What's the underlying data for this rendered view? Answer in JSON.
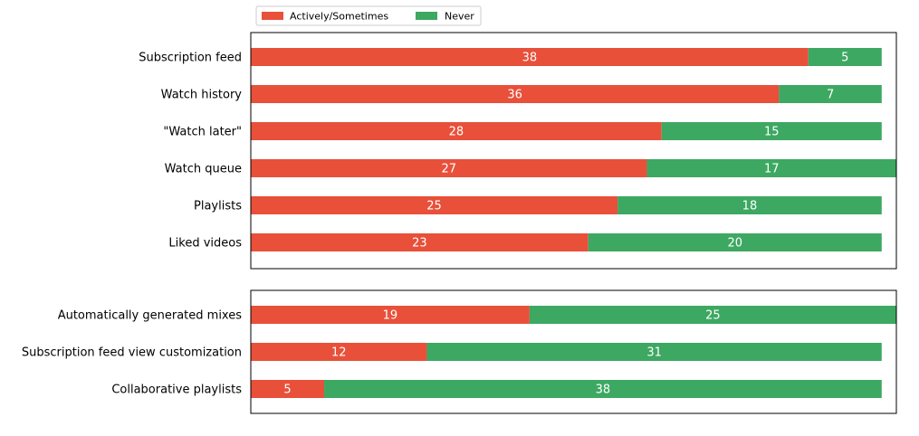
{
  "chart_data": {
    "type": "bar",
    "orientation": "horizontal",
    "stacked": true,
    "legend": {
      "placement": "top-left",
      "entries": [
        {
          "label": "Actively/Sometimes",
          "color": "#e8503a"
        },
        {
          "label": "Never",
          "color": "#3da862"
        }
      ]
    },
    "series_names": [
      "Actively/Sometimes",
      "Never"
    ],
    "colors": [
      "#e8503a",
      "#3da862"
    ],
    "panels": [
      {
        "categories": [
          "Subscription feed",
          "Watch history",
          "\"Watch later\"",
          "Watch queue",
          "Playlists",
          "Liked videos"
        ],
        "series": [
          {
            "name": "Actively/Sometimes",
            "values": [
              38,
              36,
              28,
              27,
              25,
              23
            ]
          },
          {
            "name": "Never",
            "values": [
              5,
              7,
              15,
              17,
              18,
              20
            ]
          }
        ],
        "xlim": [
          0,
          44
        ]
      },
      {
        "categories": [
          "Automatically generated mixes",
          "Subscription feed view customization",
          "Collaborative playlists"
        ],
        "series": [
          {
            "name": "Actively/Sometimes",
            "values": [
              19,
              12,
              5
            ]
          },
          {
            "name": "Never",
            "values": [
              25,
              31,
              38
            ]
          }
        ],
        "xlim": [
          0,
          44
        ]
      }
    ],
    "title": "",
    "xlabel": "",
    "ylabel": "",
    "grid": false,
    "x_ticks_shown": false
  }
}
